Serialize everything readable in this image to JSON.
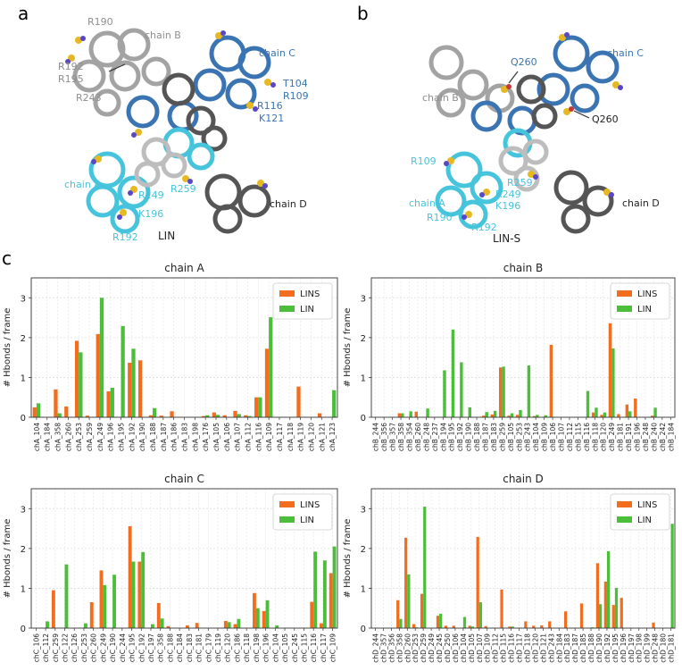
{
  "panel_labels": {
    "a": "a",
    "b": "b",
    "c": "c"
  },
  "colors": {
    "lins": "#f26d1e",
    "lin": "#4bbf3a",
    "chainA": "#46c4dc",
    "chainB": "#a3a3a3",
    "chainC": "#3a74b2",
    "chainD": "#555555",
    "chainB_label": "#8e8e8e",
    "chainD_label": "#222222",
    "atom_yellow": "#e6b922",
    "atom_blue": "#5a46c8"
  },
  "structure_a": {
    "title": "LIN",
    "chain_labels": {
      "A": "chain A",
      "B": "chain B",
      "C": "chain C",
      "D": "chain D"
    },
    "residues": {
      "B": [
        "R190",
        "R192",
        "R195",
        "R243"
      ],
      "C": [
        "T104",
        "R109",
        "R116",
        "K121"
      ],
      "A": [
        "R249",
        "K196",
        "R192",
        "R259"
      ]
    }
  },
  "structure_b": {
    "title": "LIN-S",
    "chain_labels": {
      "A": "chain A",
      "B": "chain B",
      "C": "chain C",
      "D": "chain D"
    },
    "residues": {
      "Q260": [
        "Q260",
        "Q260"
      ],
      "A": [
        "R109",
        "R259",
        "R249",
        "K196",
        "R190",
        "R192"
      ]
    }
  },
  "chart_data": [
    {
      "type": "bar",
      "title": "chain A",
      "ylabel": "# Hbonds / frame",
      "ylim": [
        0,
        3.5
      ],
      "yticks": [
        0,
        1,
        2,
        3
      ],
      "grid": true,
      "legend_position": "top-right",
      "categories": [
        "chA_104",
        "chA_184",
        "chA_358",
        "chA_260",
        "chA_253",
        "chA_259",
        "chA_249",
        "chA_196",
        "chA_195",
        "chA_192",
        "chA_190",
        "chA_188",
        "chA_187",
        "chA_186",
        "chA_183",
        "chA_198",
        "chA_176",
        "chA_105",
        "chA_106",
        "chA_107",
        "chA_112",
        "chA_116",
        "chA_109",
        "chA_117",
        "chA_118",
        "chA_119",
        "chA_120",
        "chA_121",
        "chA_123"
      ],
      "series": [
        {
          "name": "LINS",
          "values": [
            0.25,
            0,
            0.7,
            0.27,
            1.92,
            0.04,
            2.09,
            0.65,
            0,
            1.37,
            1.43,
            0.05,
            0.04,
            0.15,
            0,
            0,
            0.03,
            0.12,
            0.05,
            0.16,
            0.05,
            0.5,
            1.72,
            0,
            0,
            0.77,
            0,
            0.1,
            0
          ]
        },
        {
          "name": "LIN",
          "values": [
            0.35,
            0,
            0.1,
            0,
            1.63,
            0,
            3.0,
            0.74,
            2.29,
            1.72,
            0,
            0.23,
            0,
            0,
            0,
            0,
            0.05,
            0.06,
            0,
            0.08,
            0.03,
            0.5,
            2.51,
            0,
            0,
            0,
            0,
            0,
            0.68
          ]
        }
      ]
    },
    {
      "type": "bar",
      "title": "chain B",
      "ylabel": "# Hbonds / frame",
      "ylim": [
        0,
        3.5
      ],
      "yticks": [
        0,
        1,
        2,
        3
      ],
      "grid": true,
      "legend_position": "top-right",
      "categories": [
        "chB_244",
        "chB_356",
        "chB_357",
        "chB_358",
        "chB_354",
        "chB_260",
        "chB_248",
        "chB_237",
        "chB_194",
        "chB_195",
        "chB_192",
        "chB_190",
        "chB_188",
        "chB_187",
        "chB_183",
        "chB_259",
        "chB_105",
        "chB_253",
        "chB_243",
        "chB_104",
        "chB_109",
        "chB_106",
        "chB_107",
        "chB_112",
        "chB_115",
        "chB_116",
        "chB_118",
        "chB_120",
        "chB_249",
        "chB_181",
        "chB_191",
        "chB_196",
        "chB_248",
        "chB_240",
        "chB_242",
        "chB_184"
      ],
      "series": [
        {
          "name": "LINS",
          "values": [
            0,
            0,
            0,
            0.1,
            0,
            0.14,
            0,
            0,
            0,
            0,
            0,
            0,
            0,
            0.04,
            0.07,
            1.25,
            0.04,
            0.06,
            0,
            0.03,
            0,
            1.82,
            0,
            0,
            0,
            0,
            0.12,
            0.06,
            2.36,
            0.08,
            0.32,
            0.47,
            0,
            0.04,
            0,
            0
          ]
        },
        {
          "name": "LIN",
          "values": [
            0,
            0,
            0,
            0.1,
            0.15,
            0,
            0.22,
            0,
            1.18,
            2.2,
            1.38,
            0.25,
            0,
            0.13,
            0.16,
            1.27,
            0.1,
            0.18,
            1.3,
            0.06,
            0.05,
            0,
            0,
            0,
            0,
            0.66,
            0.24,
            0.12,
            1.73,
            0,
            0.15,
            0,
            0,
            0.24,
            0,
            0
          ]
        }
      ]
    },
    {
      "type": "bar",
      "title": "chain C",
      "ylabel": "# Hbonds / frame",
      "ylim": [
        0,
        3.5
      ],
      "yticks": [
        0,
        1,
        2,
        3
      ],
      "grid": true,
      "legend_position": "top-right",
      "categories": [
        "chC_106",
        "chC_112",
        "chC_259",
        "chC_122",
        "chC_126",
        "chC_253",
        "chC_260",
        "chC_249",
        "chC_190",
        "chC_244",
        "chC_195",
        "chC_192",
        "chC_197",
        "chC_358",
        "chC_188",
        "chC_184",
        "chC_183",
        "chC_181",
        "chC_179",
        "chC_119",
        "chC_120",
        "chC_186",
        "chC_118",
        "chC_198",
        "chC_196",
        "chC_104",
        "chC_105",
        "chC_245",
        "chC_115",
        "chC_116",
        "chC_117",
        "chC_109"
      ],
      "series": [
        {
          "name": "LINS",
          "values": [
            0,
            0,
            0.95,
            0,
            0,
            0,
            0.65,
            1.45,
            0,
            0,
            2.56,
            1.67,
            0,
            0.63,
            0.05,
            0,
            0.07,
            0.13,
            0,
            0,
            0.18,
            0.1,
            0,
            0.88,
            0.43,
            0,
            0,
            0,
            0,
            0.66,
            0.12,
            1.38
          ]
        },
        {
          "name": "LIN",
          "values": [
            0,
            0.17,
            0,
            1.6,
            0,
            0.12,
            0,
            1.08,
            1.34,
            0,
            1.67,
            1.91,
            0.1,
            0.24,
            0,
            0,
            0,
            0,
            0,
            0,
            0.15,
            0.23,
            0,
            0.5,
            0.7,
            0.07,
            0,
            0,
            0,
            1.92,
            1.7,
            2.05
          ]
        }
      ]
    },
    {
      "type": "bar",
      "title": "chain D",
      "ylabel": "# Hbonds / frame",
      "ylim": [
        0,
        3.5
      ],
      "yticks": [
        0,
        1,
        2,
        3
      ],
      "grid": true,
      "legend_position": "top-right",
      "categories": [
        "chD_244",
        "chD_357",
        "chD_356",
        "chD_358",
        "chD_260",
        "chD_253",
        "chD_259",
        "chD_249",
        "chD_245",
        "chD_250",
        "chD_106",
        "chD_104",
        "chD_105",
        "chD_107",
        "chD_109",
        "chD_112",
        "chD_115",
        "chD_116",
        "chD_117",
        "chD_118",
        "chD_120",
        "chD_121",
        "chD_243",
        "chD_184",
        "chD_183",
        "chD_187",
        "chD_185",
        "chD_188",
        "chD_190",
        "chD_192",
        "chD_195",
        "chD_196",
        "chD_197",
        "chD_198",
        "chD_199",
        "chD_248",
        "chD_180",
        "chD_181"
      ],
      "series": [
        {
          "name": "LINS",
          "values": [
            0,
            0,
            0,
            0.7,
            2.27,
            0.1,
            0.86,
            0,
            0.31,
            0.06,
            0.06,
            0,
            0.06,
            2.29,
            0.05,
            0,
            0.97,
            0.04,
            0,
            0.17,
            0.06,
            0.07,
            0.17,
            0,
            0.42,
            0,
            0.62,
            0,
            1.63,
            1.17,
            0.58,
            0.76,
            0,
            0,
            0,
            0.14,
            0,
            0
          ]
        },
        {
          "name": "LIN",
          "values": [
            0,
            0,
            0,
            0.23,
            1.35,
            0.02,
            3.05,
            0,
            0.36,
            0,
            0,
            0.28,
            0.04,
            0.65,
            0,
            0,
            0,
            0.04,
            0,
            0,
            0,
            0,
            0,
            0,
            0,
            0,
            0,
            0.02,
            0.6,
            1.93,
            1.01,
            0,
            0,
            0,
            0,
            0,
            0,
            2.62
          ]
        }
      ]
    }
  ]
}
